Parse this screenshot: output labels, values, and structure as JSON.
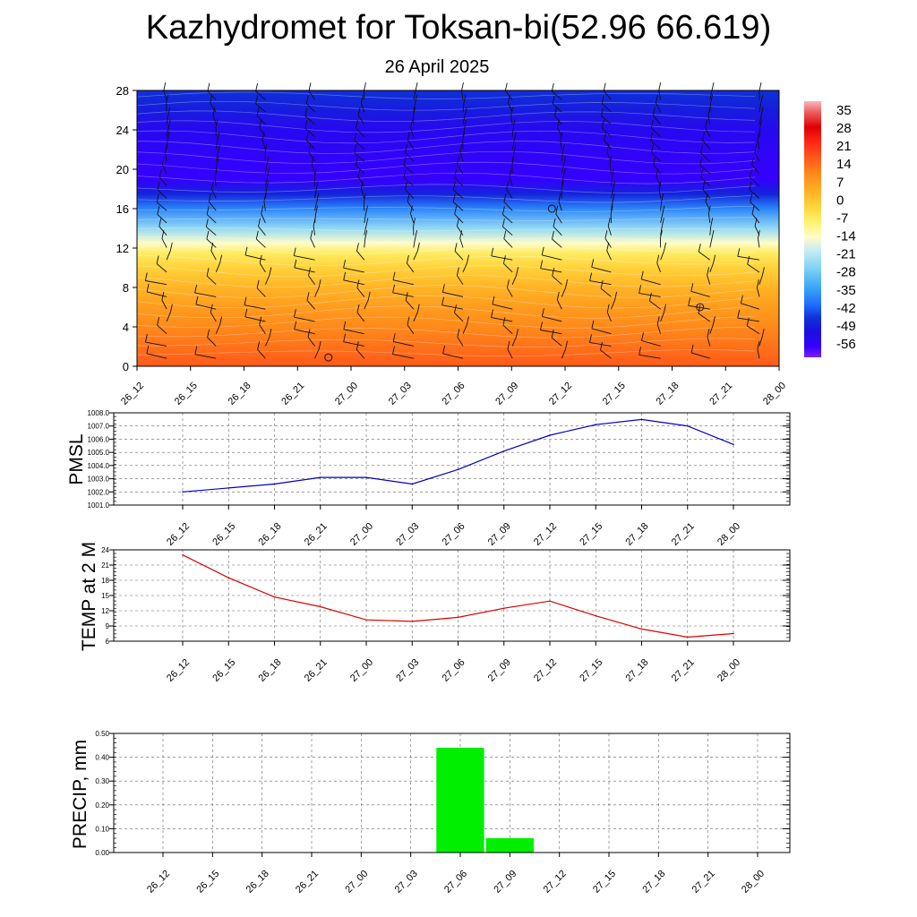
{
  "title": "Kazhydromet for Toksan-bi(52.96 66.619)",
  "subtitle": "26 April 2025",
  "chart_data": [
    {
      "type": "heatmap",
      "title": "",
      "xlabel": "",
      "ylabel": "",
      "x": [
        "26_12",
        "26_15",
        "26_18",
        "26_21",
        "27_00",
        "27_03",
        "27_06",
        "27_09",
        "27_12",
        "27_15",
        "27_18",
        "27_21",
        "28_00"
      ],
      "y": [
        0,
        4,
        8,
        12,
        16,
        20,
        24,
        28
      ],
      "y_ticks": [
        0,
        4,
        8,
        12,
        16,
        20,
        24,
        28
      ],
      "ylim": [
        0,
        28
      ],
      "colorbar": {
        "labels": [
          "35",
          "28",
          "21",
          "14",
          "7",
          "0",
          "-7",
          "-14",
          "-21",
          "-28",
          "-35",
          "-42",
          "-49",
          "-56"
        ],
        "range": [
          -60,
          38
        ]
      },
      "temperature_profile": [
        {
          "level": 0,
          "value": 16
        },
        {
          "level": 2,
          "value": 13
        },
        {
          "level": 4,
          "value": 10
        },
        {
          "level": 6,
          "value": 7
        },
        {
          "level": 8,
          "value": 3
        },
        {
          "level": 10,
          "value": -2
        },
        {
          "level": 11.5,
          "value": -7
        },
        {
          "level": 12.5,
          "value": -14
        },
        {
          "level": 14,
          "value": -24
        },
        {
          "level": 16,
          "value": -37
        },
        {
          "level": 17.5,
          "value": -47
        },
        {
          "level": 19,
          "value": -56
        },
        {
          "level": 21,
          "value": -55
        },
        {
          "level": 24,
          "value": -53
        },
        {
          "level": 26,
          "value": -48
        },
        {
          "level": 28,
          "value": -45
        }
      ],
      "wind_barbs": true
    },
    {
      "type": "line",
      "ylabel": "PMSL",
      "x": [
        "26_12",
        "26_15",
        "26_18",
        "26_21",
        "27_00",
        "27_03",
        "27_06",
        "27_09",
        "27_12",
        "27_15",
        "27_18",
        "27_21",
        "28_00"
      ],
      "series": [
        {
          "values": [
            1002.0,
            1002.3,
            1002.6,
            1003.1,
            1003.1,
            1002.6,
            1003.7,
            1005.1,
            1006.3,
            1007.1,
            1007.5,
            1007.0,
            1005.6
          ]
        }
      ],
      "ylim": [
        1001.0,
        1008.0
      ],
      "y_ticks": [
        "1001.0",
        "1002.0",
        "1003.0",
        "1004.0",
        "1005.0",
        "1006.0",
        "1007.0",
        "1008.0"
      ],
      "color": "#0000cc",
      "grid": true
    },
    {
      "type": "line",
      "ylabel": "TEMP at 2 M",
      "x": [
        "26_12",
        "26_15",
        "26_18",
        "26_21",
        "27_00",
        "27_03",
        "27_06",
        "27_09",
        "27_12",
        "27_15",
        "27_18",
        "27_21",
        "28_00"
      ],
      "series": [
        {
          "values": [
            23.0,
            18.5,
            14.7,
            12.8,
            10.2,
            9.9,
            10.7,
            12.5,
            13.9,
            11.0,
            8.4,
            6.8,
            7.5
          ]
        }
      ],
      "ylim": [
        6,
        24
      ],
      "y_ticks": [
        "6",
        "9",
        "12",
        "15",
        "18",
        "21",
        "24"
      ],
      "color": "#dd0000",
      "grid": true
    },
    {
      "type": "bar",
      "ylabel": "PRECIP, mm",
      "categories": [
        "26_12",
        "26_15",
        "26_18",
        "26_21",
        "27_00",
        "27_03",
        "27_06",
        "27_09",
        "27_12",
        "27_15",
        "27_18",
        "27_21",
        "28_00"
      ],
      "values": [
        0,
        0,
        0,
        0,
        0,
        0,
        0.44,
        0.06,
        0,
        0,
        0,
        0,
        0
      ],
      "ylim": [
        0,
        0.5
      ],
      "y_ticks": [
        "0.00",
        "0.10",
        "0.20",
        "0.30",
        "0.40",
        "0.50"
      ],
      "color": "#00ee00",
      "grid": true
    }
  ]
}
